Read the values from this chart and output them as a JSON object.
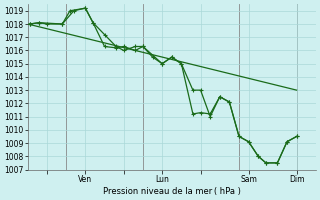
{
  "background_color": "#cff0f0",
  "grid_color": "#aad8d8",
  "line_color": "#1a6b1a",
  "xlabel": "Pression niveau de la mer ( hPa )",
  "ylim": [
    1007,
    1019.5
  ],
  "yticks": [
    1007,
    1008,
    1009,
    1010,
    1011,
    1012,
    1013,
    1014,
    1015,
    1016,
    1017,
    1018,
    1019
  ],
  "xlim": [
    0,
    7.5
  ],
  "day_lines": [
    1.0,
    3.0,
    5.5,
    7.0
  ],
  "xtick_positions": [
    0.5,
    1.5,
    2.5,
    3.5,
    4.5,
    5.75,
    7.0
  ],
  "xtick_labels": [
    "",
    "Ven",
    "",
    "Lun",
    "",
    "Sam",
    "Dim"
  ],
  "smooth_line_x": [
    0.0,
    7.0
  ],
  "smooth_line_y": [
    1018.0,
    1013.0
  ],
  "line1_x": [
    0.05,
    0.3,
    0.9,
    1.2,
    1.5,
    1.7,
    2.0,
    2.3,
    2.5,
    2.8,
    3.0,
    3.5,
    3.75,
    4.0,
    4.3,
    4.5,
    4.75,
    5.0,
    5.25,
    5.5,
    5.75,
    6.0,
    6.2,
    6.5,
    6.75,
    7.0
  ],
  "line1_y": [
    1018.0,
    1018.1,
    1018.0,
    1019.0,
    1019.2,
    1018.1,
    1016.3,
    1016.2,
    1016.3,
    1016.0,
    1016.3,
    1015.0,
    1015.5,
    1015.0,
    1011.2,
    1011.3,
    1011.2,
    1012.5,
    1012.1,
    1009.5,
    1009.1,
    1008.0,
    1007.5,
    1007.5,
    1009.1,
    1009.5
  ],
  "line2_x": [
    0.05,
    0.3,
    0.5,
    0.9,
    1.1,
    1.5,
    1.7,
    2.0,
    2.3,
    2.5,
    2.8,
    3.0,
    3.25,
    3.5,
    3.75,
    4.0,
    4.3,
    4.5,
    4.75,
    5.0,
    5.25,
    5.5,
    5.75,
    6.0,
    6.2,
    6.5,
    6.75,
    7.0
  ],
  "line2_y": [
    1018.0,
    1018.1,
    1018.0,
    1018.0,
    1019.0,
    1019.2,
    1018.1,
    1017.2,
    1016.3,
    1016.0,
    1016.3,
    1016.3,
    1015.5,
    1015.0,
    1015.5,
    1015.0,
    1013.0,
    1013.0,
    1011.0,
    1012.5,
    1012.1,
    1009.5,
    1009.1,
    1008.0,
    1007.5,
    1007.5,
    1009.1,
    1009.5
  ]
}
